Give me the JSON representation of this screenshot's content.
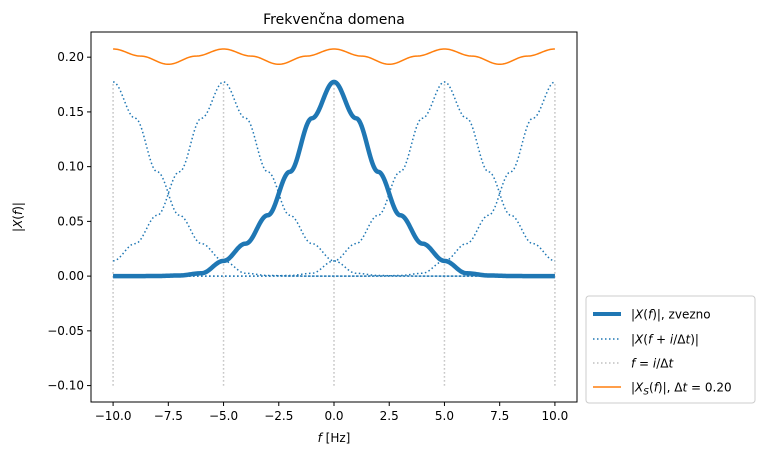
{
  "chart_data": {
    "type": "line",
    "title": "Frekvenčna domena",
    "xlabel": "f [Hz]",
    "ylabel": "|X(f)|",
    "xlim": [
      -11,
      11
    ],
    "ylim": [
      -0.115,
      0.223
    ],
    "xticks": [
      -10.0,
      -7.5,
      -5.0,
      -2.5,
      0.0,
      2.5,
      5.0,
      7.5,
      10.0
    ],
    "xtick_labels": [
      "−10.0",
      "−7.5",
      "−5.0",
      "−2.5",
      "0.0",
      "2.5",
      "5.0",
      "7.5",
      "10.0"
    ],
    "yticks": [
      -0.1,
      -0.05,
      0.0,
      0.05,
      0.1,
      0.15,
      0.2
    ],
    "ytick_labels": [
      "−0.10",
      "−0.05",
      "0.00",
      "0.05",
      "0.10",
      "0.15",
      "0.20"
    ],
    "grid": false,
    "legend_position": "outside-bottom-right",
    "series": [
      {
        "name": "|X(f)|, zvezno",
        "style": "solid-thick",
        "color": "#1f77b4",
        "x": [
          -10,
          -9,
          -8,
          -7,
          -6,
          -5,
          -4,
          -3,
          -2,
          -1,
          0,
          1,
          2,
          3,
          4,
          5,
          6,
          7,
          8,
          9,
          10
        ],
        "y": [
          0.0,
          0.0,
          0.0001,
          0.0006,
          0.0026,
          0.0139,
          0.0297,
          0.0556,
          0.0953,
          0.1442,
          0.1774,
          0.1442,
          0.0953,
          0.0556,
          0.0297,
          0.0139,
          0.0026,
          0.0006,
          0.0001,
          0.0,
          0.0
        ]
      },
      {
        "name": "|X(f + i/Δt)|",
        "style": "dotted",
        "color": "#1f77b4",
        "shifts": [
          -10,
          -5,
          5,
          10
        ]
      },
      {
        "name": "f = i/Δt",
        "style": "dotted-vertical",
        "color": "#c0c0c0",
        "x": [
          -10,
          -5,
          0,
          5,
          10
        ],
        "y_range": [
          -0.1,
          0.177
        ]
      },
      {
        "name": "|X_S(f)|, Δt = 0.20",
        "style": "solid",
        "color": "#ff7f0e",
        "x": [
          -10,
          -8.75,
          -7.5,
          -6.25,
          -5,
          -3.75,
          -2.5,
          -1.25,
          0,
          1.25,
          2.5,
          3.75,
          5,
          6.25,
          7.5,
          8.75,
          10
        ],
        "y": [
          0.2075,
          0.201,
          0.1935,
          0.201,
          0.2075,
          0.201,
          0.1935,
          0.201,
          0.2075,
          0.201,
          0.1935,
          0.201,
          0.2075,
          0.201,
          0.1935,
          0.201,
          0.2075
        ]
      }
    ]
  },
  "legend": {
    "items": [
      {
        "label": "|X(f)|, zvezno"
      },
      {
        "label": "|X(f + i/Δt)|"
      },
      {
        "label": "f = i/Δt"
      },
      {
        "label": "|X_S(f)|, Δt = 0.20"
      }
    ]
  }
}
